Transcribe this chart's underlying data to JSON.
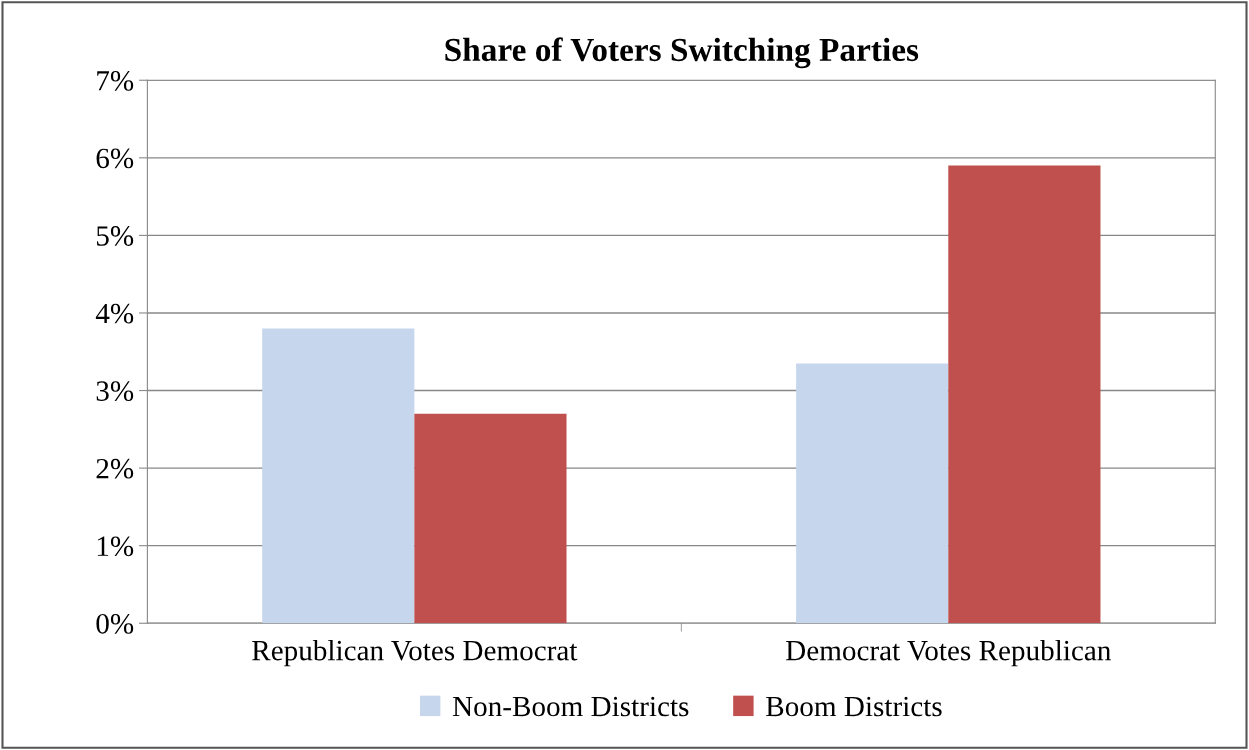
{
  "chart_data": {
    "type": "bar",
    "title": "Share of Voters Switching Parties",
    "categories": [
      "Republican Votes Democrat",
      "Democrat Votes Republican"
    ],
    "series": [
      {
        "name": "Non-Boom Districts",
        "color": "#c6d6ec",
        "values": [
          3.8,
          3.35
        ]
      },
      {
        "name": "Boom Districts",
        "color": "#c0504d",
        "values": [
          2.7,
          5.9
        ]
      }
    ],
    "ylim": [
      0,
      7
    ],
    "yticks": [
      {
        "value": 0,
        "label": "0%"
      },
      {
        "value": 1,
        "label": "1%"
      },
      {
        "value": 2,
        "label": "2%"
      },
      {
        "value": 3,
        "label": "3%"
      },
      {
        "value": 4,
        "label": "4%"
      },
      {
        "value": 5,
        "label": "5%"
      },
      {
        "value": 6,
        "label": "6%"
      },
      {
        "value": 7,
        "label": "7%"
      }
    ],
    "grid": "y",
    "legend": "bottom"
  }
}
